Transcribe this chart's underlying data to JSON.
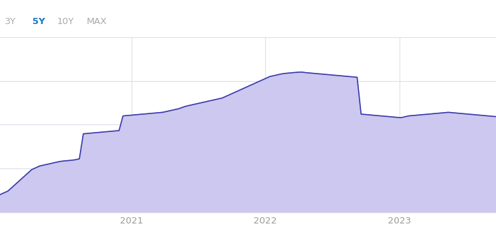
{
  "background_color": "#ffffff",
  "fill_color": "#ccc8f0",
  "line_color": "#3a3aaa",
  "grid_color": "#e0dde8",
  "x_labels": [
    "2021",
    "2022",
    "2023"
  ],
  "tab_labels": [
    "3Y",
    "5Y",
    "10Y",
    "MAX"
  ],
  "tab_active": "5Y",
  "tab_active_color": "#1a7bbf",
  "tab_inactive_color": "#aaaaaa",
  "x_tick_positions": [
    0.265,
    0.535,
    0.805
  ],
  "x_values": [
    0.0,
    0.008,
    0.016,
    0.024,
    0.032,
    0.04,
    0.048,
    0.056,
    0.064,
    0.072,
    0.08,
    0.088,
    0.096,
    0.104,
    0.112,
    0.12,
    0.128,
    0.136,
    0.144,
    0.152,
    0.16,
    0.168,
    0.176,
    0.184,
    0.192,
    0.2,
    0.208,
    0.216,
    0.224,
    0.232,
    0.24,
    0.248,
    0.256,
    0.264,
    0.272,
    0.28,
    0.288,
    0.296,
    0.304,
    0.312,
    0.32,
    0.328,
    0.336,
    0.344,
    0.352,
    0.36,
    0.368,
    0.376,
    0.384,
    0.392,
    0.4,
    0.408,
    0.416,
    0.424,
    0.432,
    0.44,
    0.448,
    0.456,
    0.464,
    0.472,
    0.48,
    0.488,
    0.496,
    0.504,
    0.512,
    0.52,
    0.528,
    0.536,
    0.544,
    0.552,
    0.56,
    0.568,
    0.576,
    0.584,
    0.592,
    0.6,
    0.608,
    0.616,
    0.624,
    0.632,
    0.64,
    0.648,
    0.656,
    0.664,
    0.672,
    0.68,
    0.688,
    0.696,
    0.704,
    0.712,
    0.72,
    0.728,
    0.736,
    0.744,
    0.752,
    0.76,
    0.768,
    0.776,
    0.784,
    0.792,
    0.8,
    0.808,
    0.816,
    0.824,
    0.832,
    0.84,
    0.848,
    0.856,
    0.864,
    0.872,
    0.88,
    0.888,
    0.896,
    0.904,
    0.912,
    0.92,
    0.928,
    0.936,
    0.944,
    0.952,
    0.96,
    0.968,
    0.976,
    0.984,
    0.992,
    1.0
  ],
  "y_values": [
    1.0,
    1.1,
    1.2,
    1.4,
    1.6,
    1.8,
    2.0,
    2.2,
    2.4,
    2.5,
    2.6,
    2.65,
    2.7,
    2.75,
    2.8,
    2.85,
    2.88,
    2.9,
    2.92,
    2.95,
    3.0,
    4.4,
    4.42,
    4.44,
    4.46,
    4.48,
    4.5,
    4.52,
    4.54,
    4.56,
    4.58,
    5.4,
    5.42,
    5.44,
    5.46,
    5.48,
    5.5,
    5.52,
    5.54,
    5.56,
    5.58,
    5.6,
    5.65,
    5.7,
    5.75,
    5.8,
    5.88,
    5.95,
    6.0,
    6.05,
    6.1,
    6.15,
    6.2,
    6.25,
    6.3,
    6.35,
    6.4,
    6.5,
    6.6,
    6.7,
    6.8,
    6.9,
    7.0,
    7.1,
    7.2,
    7.3,
    7.4,
    7.5,
    7.6,
    7.65,
    7.7,
    7.75,
    7.78,
    7.8,
    7.82,
    7.84,
    7.85,
    7.82,
    7.8,
    7.78,
    7.76,
    7.74,
    7.72,
    7.7,
    7.68,
    7.66,
    7.64,
    7.62,
    7.6,
    7.58,
    7.56,
    5.5,
    5.48,
    5.46,
    5.44,
    5.42,
    5.4,
    5.38,
    5.36,
    5.34,
    5.32,
    5.3,
    5.35,
    5.4,
    5.42,
    5.44,
    5.46,
    5.48,
    5.5,
    5.52,
    5.54,
    5.56,
    5.58,
    5.6,
    5.58,
    5.56,
    5.54,
    5.52,
    5.5,
    5.48,
    5.46,
    5.44,
    5.42,
    5.4,
    5.38,
    5.36
  ]
}
